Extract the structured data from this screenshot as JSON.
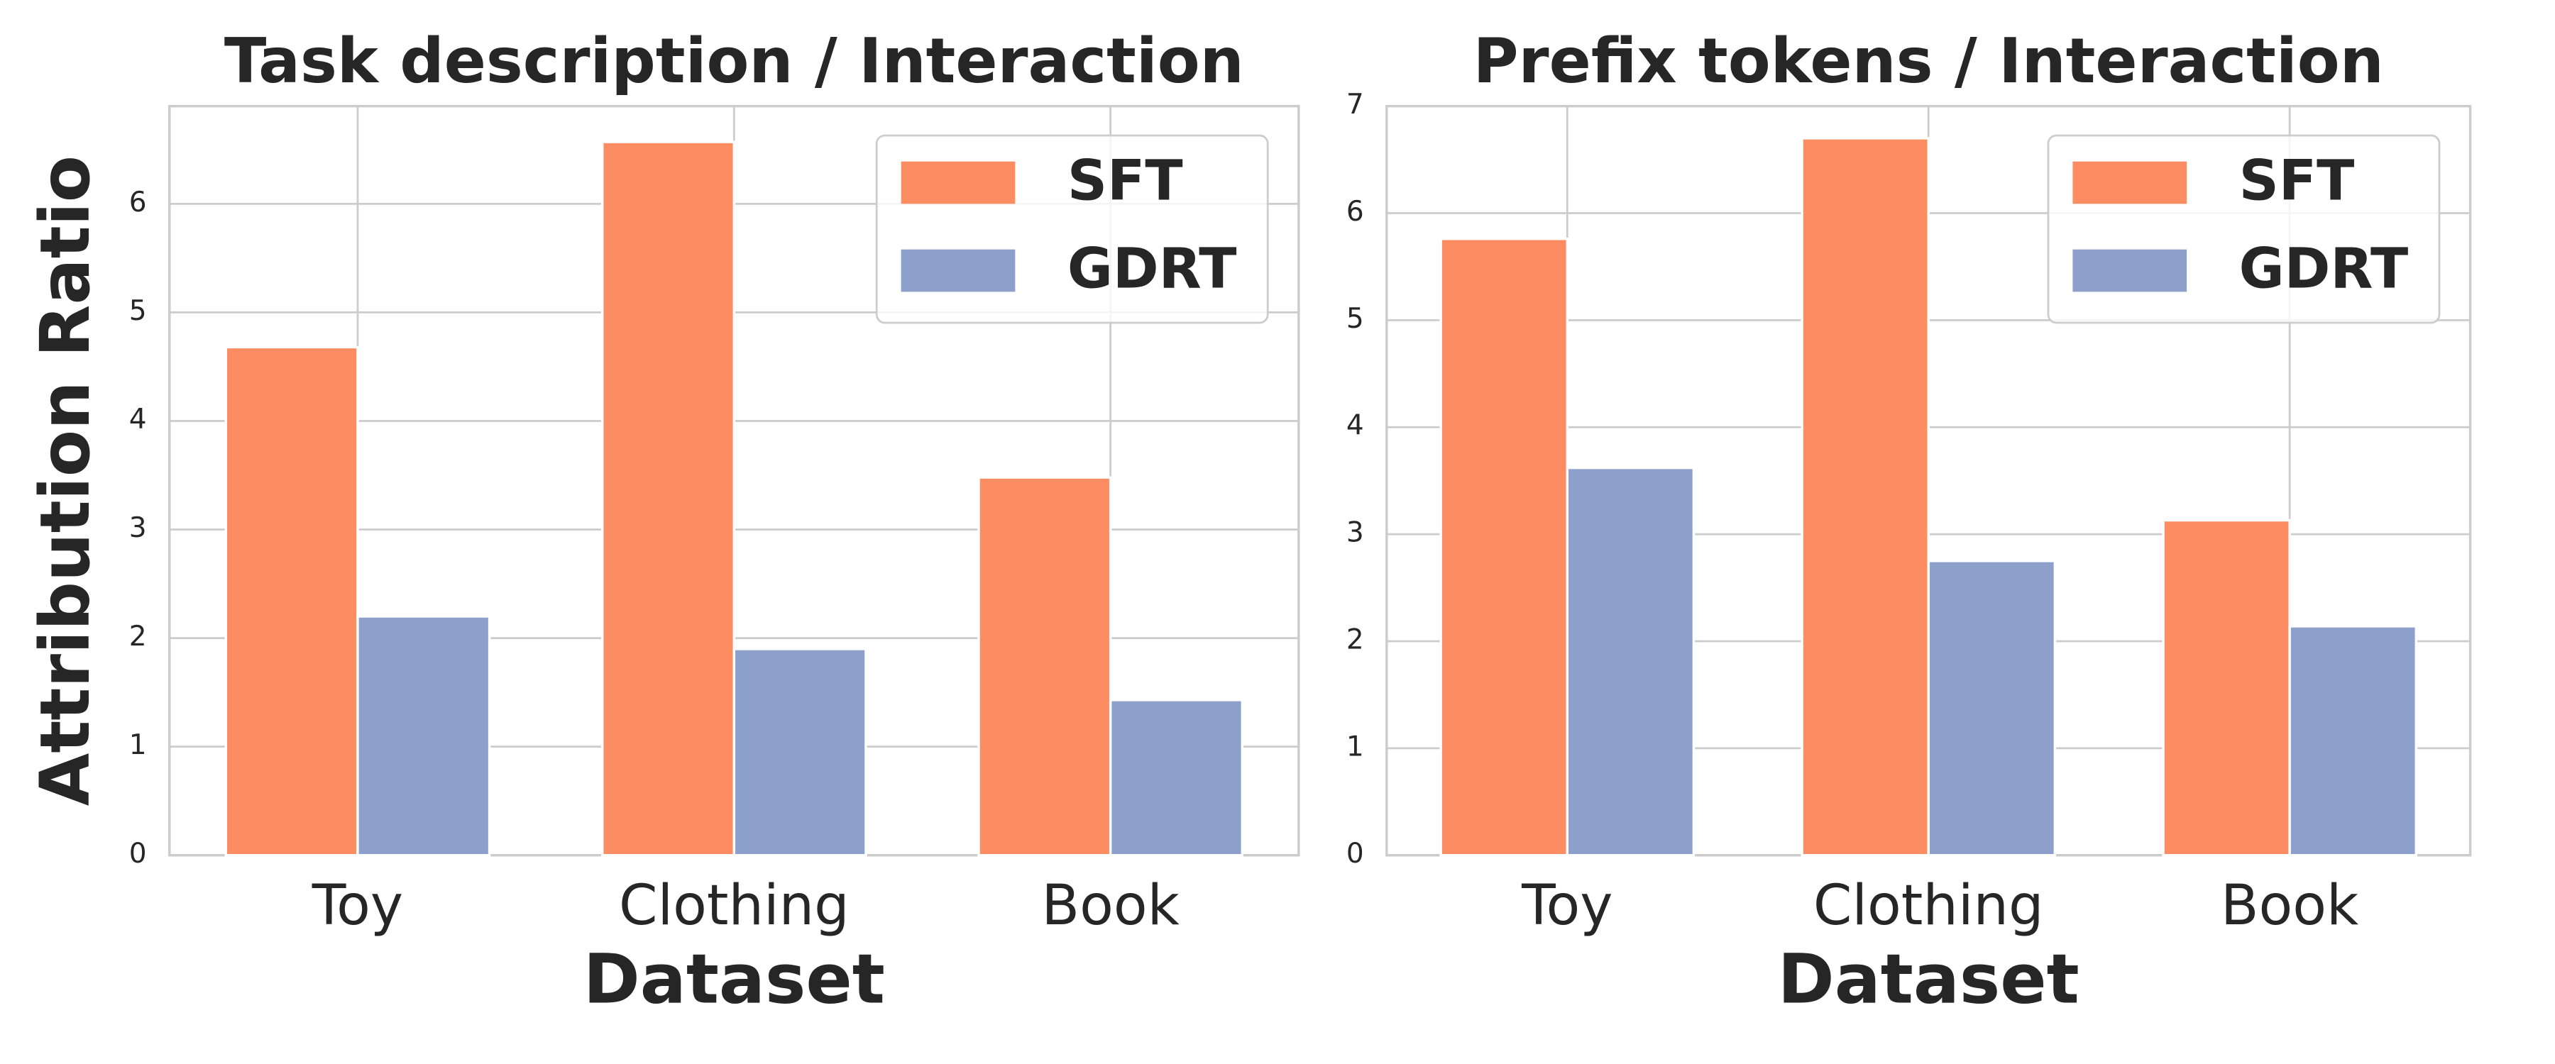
{
  "chart_data": [
    {
      "type": "bar",
      "title": "Task description / Interaction",
      "xlabel": "Dataset",
      "ylabel": "Attribution Ratio",
      "categories": [
        "Toy",
        "Clothing",
        "Book"
      ],
      "series": [
        {
          "name": "SFT",
          "color": "#fc8d62",
          "values": [
            4.68,
            6.57,
            3.48
          ]
        },
        {
          "name": "GDRT",
          "color": "#8da0cb",
          "values": [
            2.2,
            1.9,
            1.43
          ]
        }
      ],
      "ylim": [
        0,
        6.9
      ],
      "yticks": [
        0,
        1,
        2,
        3,
        4,
        5,
        6
      ],
      "grid": true,
      "legend": "upper right"
    },
    {
      "type": "bar",
      "title": "Prefix tokens / Interaction",
      "xlabel": "Dataset",
      "categories": [
        "Toy",
        "Clothing",
        "Book"
      ],
      "series": [
        {
          "name": "SFT",
          "color": "#fc8d62",
          "values": [
            5.76,
            6.7,
            3.13
          ]
        },
        {
          "name": "GDRT",
          "color": "#8da0cb",
          "values": [
            3.62,
            2.75,
            2.14
          ]
        }
      ],
      "ylim": [
        0,
        7
      ],
      "yticks": [
        0,
        1,
        2,
        3,
        4,
        5,
        6,
        7
      ],
      "grid": true,
      "legend": "upper right"
    }
  ]
}
